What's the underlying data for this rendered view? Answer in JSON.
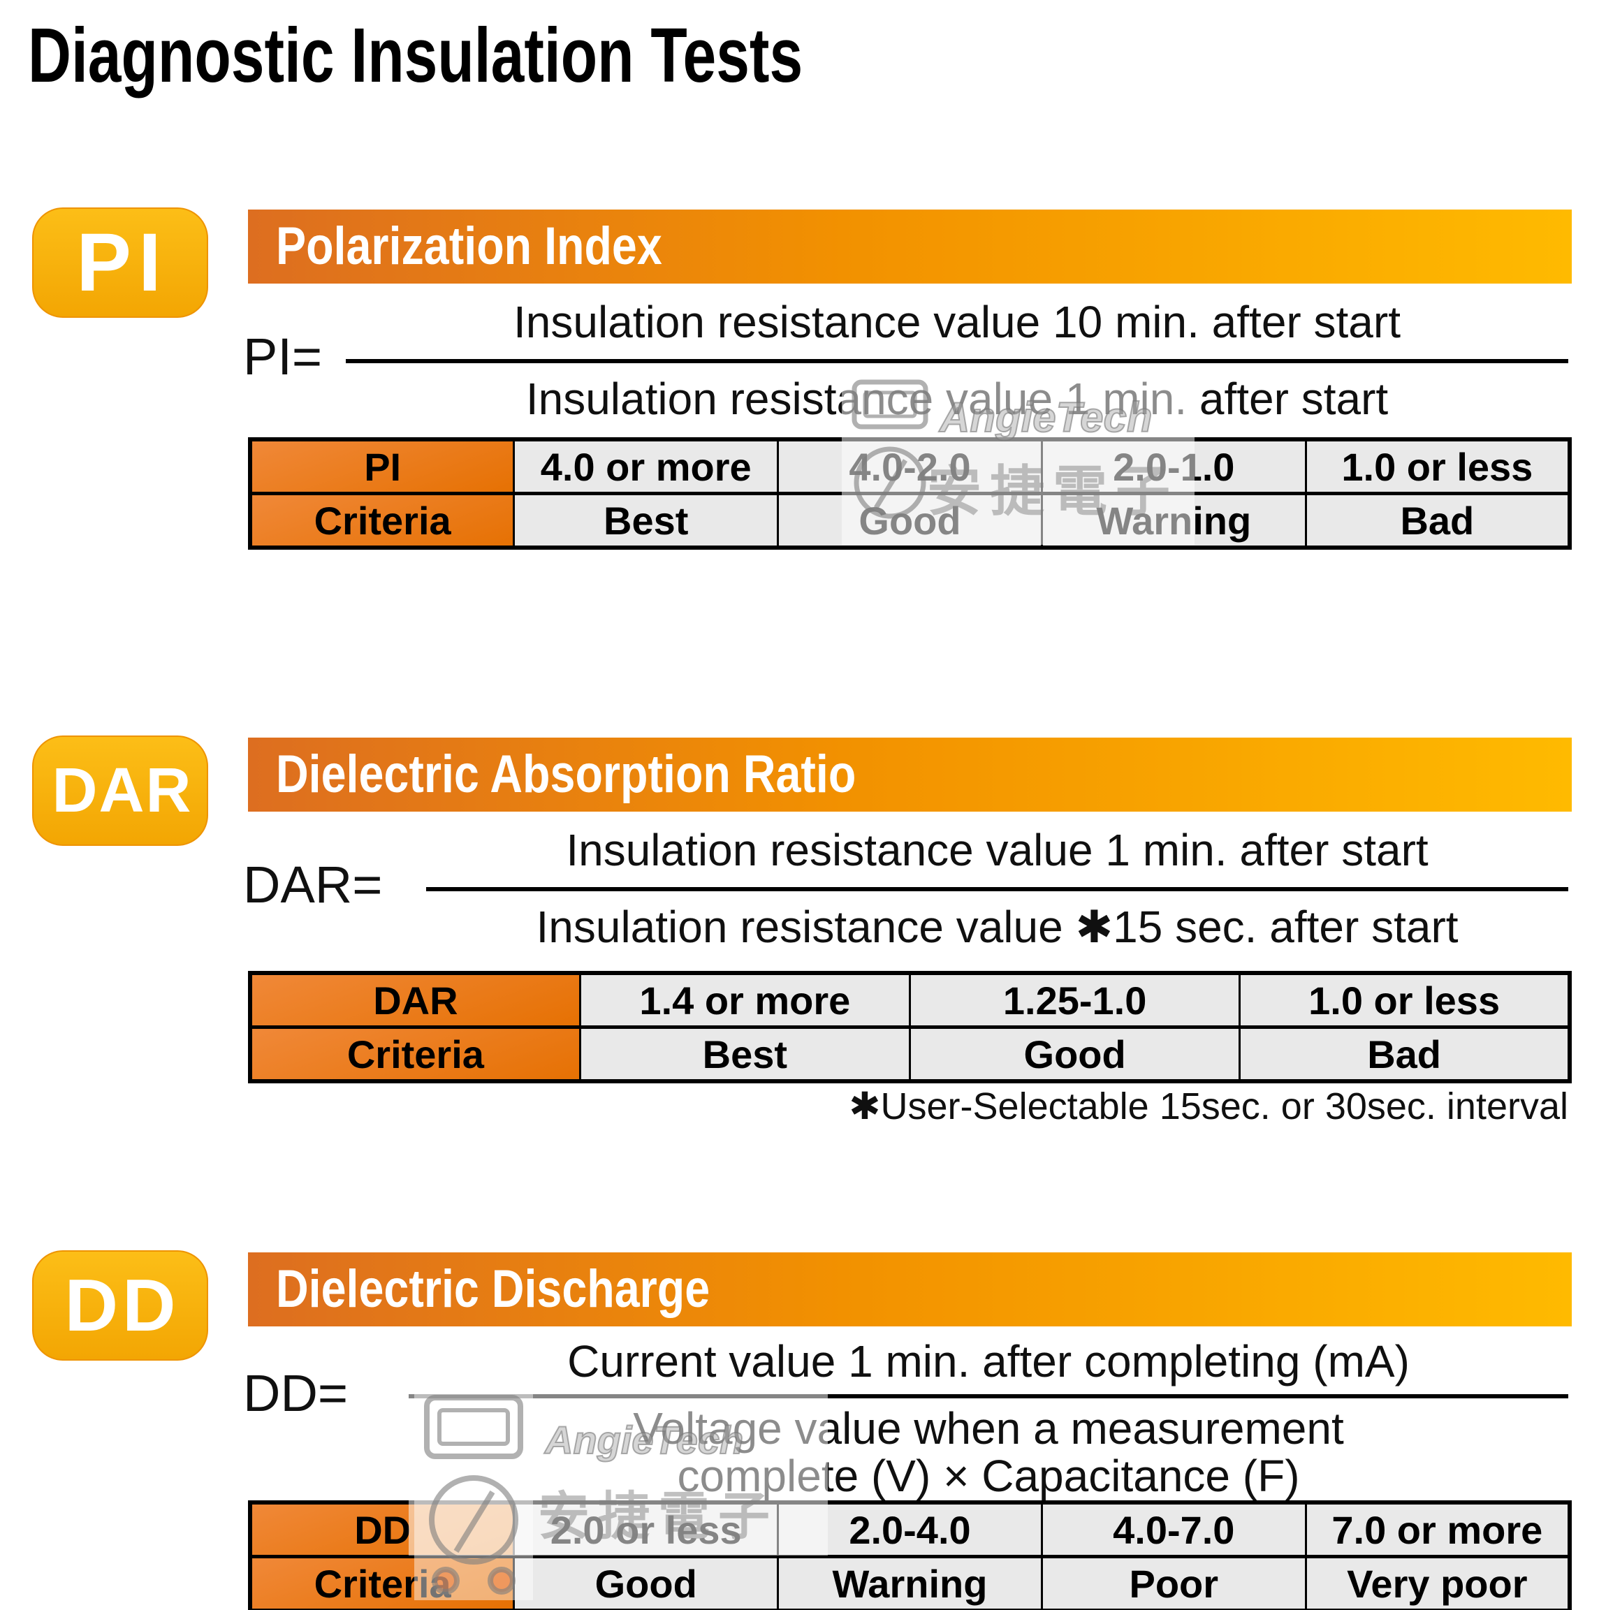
{
  "page": {
    "title": "Diagnostic Insulation Tests"
  },
  "watermark": {
    "brand": "AngieTech",
    "brand_cjk": "安捷電子"
  },
  "sections": [
    {
      "id": "pi",
      "badge": "PI",
      "header": "Polarization Index",
      "formula_label": "PI=",
      "numerator": "Insulation resistance value 10 min. after start",
      "denominator": "Insulation resistance value 1 min. after start",
      "table": {
        "rows": [
          [
            "PI",
            "4.0 or more",
            "4.0-2.0",
            "2.0-1.0",
            "1.0 or less"
          ],
          [
            "Criteria",
            "Best",
            "Good",
            "Warning",
            "Bad"
          ]
        ]
      }
    },
    {
      "id": "dar",
      "badge": "DAR",
      "header": "Dielectric Absorption Ratio",
      "formula_label": "DAR=",
      "numerator": "Insulation resistance value 1 min. after start",
      "denominator": "Insulation resistance value ✱15 sec. after start",
      "note": "✱User-Selectable 15sec. or 30sec. interval",
      "table": {
        "rows": [
          [
            "DAR",
            "1.4 or more",
            "1.25-1.0",
            "1.0 or less"
          ],
          [
            "Criteria",
            "Best",
            "Good",
            "Bad"
          ]
        ]
      }
    },
    {
      "id": "dd",
      "badge": "DD",
      "header": "Dielectric Discharge",
      "formula_label": "DD=",
      "numerator": "Current value 1 min. after completing (mA)",
      "denominator_line1": "Voltage value when a measurement",
      "denominator_line2": "complete (V) × Capacitance (F)",
      "table": {
        "rows": [
          [
            "DD",
            "2.0 or less",
            "2.0-4.0",
            "4.0-7.0",
            "7.0 or more"
          ],
          [
            "Criteria",
            "Good",
            "Warning",
            "Poor",
            "Very poor"
          ]
        ]
      }
    }
  ],
  "colors": {
    "bar_gradient_left": "#DD6E20",
    "bar_gradient_right": "#FFBA00",
    "badge": "#F7AF06",
    "header_cell_orange": "#E87607",
    "cell_gray": "#E9E9E9",
    "text": "#000000",
    "header_text": "#FFFFFF"
  }
}
